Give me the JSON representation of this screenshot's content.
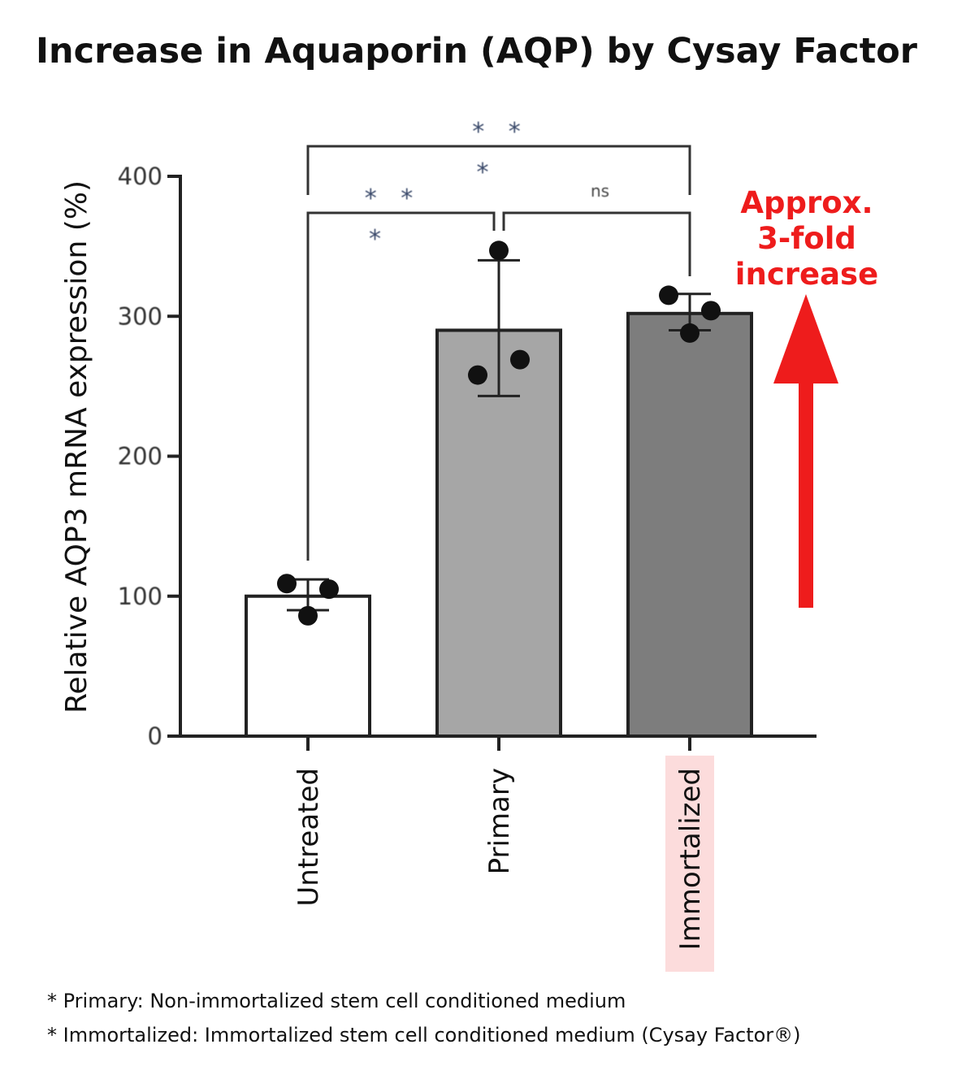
{
  "chart_data": {
    "type": "bar",
    "title": "Increase in Aquaporin (AQP) by Cysay Factor",
    "ylabel": "Relative AQP3 mRNA expression (%)",
    "xlabel": "",
    "ylim": [
      0,
      400
    ],
    "yticks": [
      0,
      100,
      200,
      300,
      400
    ],
    "categories": [
      "Untreated",
      "Primary",
      "Immortalized"
    ],
    "highlighted_category": "Immortalized",
    "values": [
      100,
      290,
      302
    ],
    "error_bars": [
      {
        "low": 90,
        "high": 112
      },
      {
        "low": 243,
        "high": 340
      },
      {
        "low": 290,
        "high": 316
      }
    ],
    "points": [
      [
        109,
        86,
        105
      ],
      [
        258,
        347,
        269
      ],
      [
        315,
        288,
        304
      ]
    ],
    "bar_colors": [
      "#ffffff",
      "#a6a6a6",
      "#7d7d7d"
    ],
    "significance": [
      {
        "from": "Untreated",
        "to": "Immortalized",
        "label": "* * *"
      },
      {
        "from": "Untreated",
        "to": "Primary",
        "label": "* * *"
      },
      {
        "from": "Primary",
        "to": "Immortalized",
        "label": "ns"
      }
    ],
    "annotation": {
      "lines": [
        "Approx.",
        "3-fold",
        "increase"
      ],
      "color": "#ee1c1c"
    }
  },
  "footnotes": [
    "* Primary: Non-immortalized stem cell conditioned medium",
    "* Immortalized: Immortalized stem cell conditioned medium (Cysay Factor®)"
  ]
}
